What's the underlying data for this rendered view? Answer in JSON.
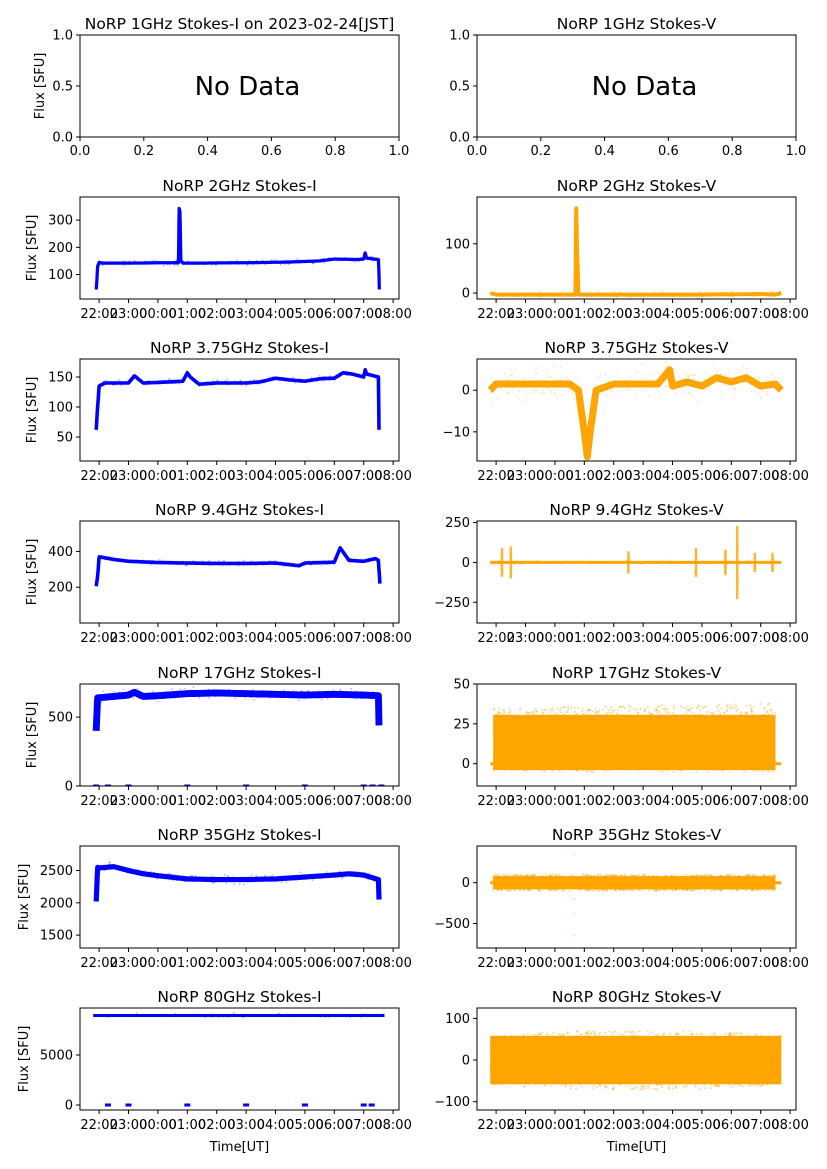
{
  "figure": {
    "x_tick_labels": [
      "22:00",
      "23:00",
      "00:00",
      "01:00",
      "02:00",
      "03:00",
      "04:00",
      "05:00",
      "06:00",
      "07:00",
      "08:00"
    ],
    "xlabel": "Time[UT]",
    "ylabel": "Flux [SFU]",
    "no_data_text": "No Data",
    "colors": {
      "stokes_i": "#0000ff",
      "stokes_v": "#ffa500"
    }
  },
  "chart_data": [
    {
      "id": "1ghz-i",
      "type": "scatter",
      "title": "NoRP 1GHz Stokes-I on 2023-02-24[JST]",
      "ylabel": "Flux [SFU]",
      "xlabel": "",
      "no_data": true,
      "xlim": [
        0,
        1
      ],
      "ylim": [
        0,
        1
      ],
      "x_ticks": [
        "0.0",
        "0.2",
        "0.4",
        "0.6",
        "0.8",
        "1.0"
      ],
      "y_ticks": [
        {
          "v": 0,
          "l": "0.0"
        },
        {
          "v": 0.5,
          "l": "0.5"
        },
        {
          "v": 1,
          "l": "1.0"
        }
      ]
    },
    {
      "id": "1ghz-v",
      "type": "scatter",
      "title": "NoRP 1GHz Stokes-V",
      "ylabel": "",
      "xlabel": "",
      "no_data": true,
      "xlim": [
        0,
        1
      ],
      "ylim": [
        0,
        1
      ],
      "x_ticks": [
        "0.0",
        "0.2",
        "0.4",
        "0.6",
        "0.8",
        "1.0"
      ],
      "y_ticks": [
        {
          "v": 0,
          "l": "0.0"
        },
        {
          "v": 0.5,
          "l": "0.5"
        },
        {
          "v": 1,
          "l": "1.0"
        }
      ]
    },
    {
      "id": "2ghz-i",
      "type": "scatter",
      "title": "NoRP 2GHz Stokes-I",
      "ylabel": "Flux [SFU]",
      "stokes": "I",
      "ylim": [
        10,
        385
      ],
      "y_ticks": [
        {
          "v": 100,
          "l": "100"
        },
        {
          "v": 200,
          "l": "200"
        },
        {
          "v": 300,
          "l": "300"
        }
      ],
      "series": [
        {
          "name": "2GHz I",
          "x_hours": [
            -2.1,
            -2.08,
            -2.05,
            -2.0,
            -1.9,
            -1.5,
            -1.0,
            0.0,
            0.7,
            0.72,
            0.75,
            0.78,
            0.85,
            1.5,
            2.5,
            3.5,
            4.5,
            5.5,
            6.0,
            6.8,
            7.0,
            7.05,
            7.1,
            7.5,
            7.52,
            7.53
          ],
          "y": [
            45,
            70,
            130,
            145,
            142,
            142,
            142,
            143,
            143,
            345,
            330,
            150,
            142,
            142,
            143,
            144,
            146,
            150,
            157,
            155,
            157,
            180,
            160,
            155,
            100,
            45
          ],
          "spread": 6
        }
      ]
    },
    {
      "id": "2ghz-v",
      "type": "scatter",
      "title": "NoRP 2GHz Stokes-V",
      "ylabel": "",
      "stokes": "V",
      "ylim": [
        -12,
        195
      ],
      "y_ticks": [
        {
          "v": 0,
          "l": "0"
        },
        {
          "v": 100,
          "l": "100"
        }
      ],
      "series": [
        {
          "name": "2GHz V",
          "x_hours": [
            -2.2,
            -2.0,
            -1.0,
            0.0,
            0.7,
            0.72,
            0.75,
            0.8,
            1.5,
            3.0,
            5.0,
            7.0,
            7.5,
            7.7
          ],
          "y": [
            0,
            -3,
            -3,
            -3,
            -3,
            190,
            100,
            -3,
            -3,
            -3,
            -3,
            -2,
            -3,
            0
          ],
          "spread": 4
        }
      ]
    },
    {
      "id": "3.75ghz-i",
      "type": "scatter",
      "title": "NoRP 3.75GHz Stokes-I",
      "ylabel": "Flux [SFU]",
      "stokes": "I",
      "ylim": [
        10,
        180
      ],
      "y_ticks": [
        {
          "v": 50,
          "l": "50"
        },
        {
          "v": 100,
          "l": "100"
        },
        {
          "v": 150,
          "l": "150"
        }
      ],
      "series": [
        {
          "name": "3.75GHz I",
          "x_hours": [
            -2.1,
            -2.05,
            -2.0,
            -1.8,
            -1.0,
            -0.8,
            -0.5,
            0.0,
            0.5,
            0.85,
            1.0,
            1.1,
            1.4,
            2.0,
            2.5,
            3.0,
            3.5,
            4.0,
            4.5,
            5.0,
            5.5,
            6.0,
            6.3,
            6.6,
            7.0,
            7.05,
            7.1,
            7.5,
            7.52
          ],
          "y": [
            62,
            100,
            135,
            140,
            140,
            152,
            140,
            141,
            142,
            143,
            157,
            150,
            138,
            140,
            140,
            140,
            142,
            148,
            145,
            143,
            147,
            148,
            157,
            155,
            150,
            162,
            155,
            150,
            62
          ],
          "spread": 3
        }
      ]
    },
    {
      "id": "3.75ghz-v",
      "type": "scatter",
      "title": "NoRP 3.75GHz Stokes-V",
      "ylabel": "",
      "stokes": "V",
      "ylim": [
        -17,
        7.5
      ],
      "y_ticks": [
        {
          "v": -10,
          "l": "−10"
        },
        {
          "v": 0,
          "l": "0"
        }
      ],
      "series": [
        {
          "name": "3.75GHz V",
          "x_hours": [
            -2.2,
            -2.0,
            -1.0,
            0.0,
            0.5,
            0.8,
            1.0,
            1.1,
            1.2,
            1.4,
            2.0,
            3.0,
            3.5,
            3.8,
            3.9,
            4.0,
            4.5,
            5.0,
            5.5,
            6.0,
            6.5,
            7.0,
            7.5,
            7.7
          ],
          "y": [
            0,
            1.5,
            1.5,
            1.5,
            1.5,
            0,
            -10,
            -16,
            -10,
            0,
            1.5,
            1.5,
            1.5,
            4,
            5,
            1,
            2,
            1,
            3,
            2,
            3,
            1,
            1.5,
            0
          ],
          "spread": 2.5
        }
      ]
    },
    {
      "id": "9.4ghz-i",
      "type": "scatter",
      "title": "NoRP 9.4GHz Stokes-I",
      "ylabel": "Flux [SFU]",
      "stokes": "I",
      "ylim": [
        0,
        570
      ],
      "y_ticks": [
        {
          "v": 200,
          "l": "200"
        },
        {
          "v": 400,
          "l": "400"
        }
      ],
      "series": [
        {
          "name": "9.4GHz I",
          "x_hours": [
            -2.1,
            -2.05,
            -2.0,
            -1.5,
            -1.0,
            0.0,
            1.0,
            2.0,
            3.0,
            4.0,
            4.8,
            5.0,
            6.0,
            6.2,
            6.5,
            7.0,
            7.4,
            7.5,
            7.55
          ],
          "y": [
            205,
            260,
            370,
            355,
            345,
            338,
            335,
            333,
            333,
            335,
            320,
            335,
            340,
            420,
            350,
            345,
            360,
            350,
            220
          ],
          "spread": 10
        }
      ]
    },
    {
      "id": "9.4ghz-v",
      "type": "scatter",
      "title": "NoRP 9.4GHz Stokes-V",
      "ylabel": "",
      "stokes": "V",
      "ylim": [
        -380,
        260
      ],
      "y_ticks": [
        {
          "v": -250,
          "l": "−250"
        },
        {
          "v": 0,
          "l": "0"
        },
        {
          "v": 250,
          "l": "250"
        }
      ],
      "series": [
        {
          "name": "9.4GHz V",
          "x_hours": [
            -2.2,
            7.7
          ],
          "y": [
            0,
            0
          ],
          "spread": 8,
          "bursts_x_hours": [
            -1.8,
            -1.5,
            2.5,
            4.8,
            5.8,
            6.2,
            6.8,
            7.4
          ],
          "bursts_amplitude": [
            90,
            100,
            70,
            90,
            80,
            230,
            60,
            60
          ]
        }
      ]
    },
    {
      "id": "17ghz-i",
      "type": "scatter",
      "title": "NoRP 17GHz Stokes-I",
      "ylabel": "Flux [SFU]",
      "stokes": "I",
      "ylim": [
        0,
        740
      ],
      "y_ticks": [
        {
          "v": 0,
          "l": "0"
        },
        {
          "v": 500,
          "l": "500"
        }
      ],
      "series": [
        {
          "name": "17GHz I",
          "x_hours": [
            -2.1,
            -2.05,
            -2.0,
            -1.5,
            -1.0,
            -0.8,
            -0.5,
            0.0,
            1.0,
            2.0,
            3.0,
            4.0,
            5.0,
            6.0,
            7.0,
            7.5,
            7.52
          ],
          "y": [
            400,
            640,
            640,
            650,
            660,
            680,
            650,
            655,
            670,
            675,
            670,
            665,
            660,
            665,
            660,
            655,
            440
          ],
          "spread": 25,
          "dropouts_x_hours": [
            -2.1,
            -1.7,
            -1.0,
            1.0,
            3.0,
            5.0,
            7.0,
            7.3,
            7.6
          ]
        }
      ]
    },
    {
      "id": "17ghz-v",
      "type": "scatter",
      "title": "NoRP 17GHz Stokes-V",
      "ylabel": "",
      "stokes": "V",
      "ylim": [
        -14,
        50
      ],
      "y_ticks": [
        {
          "v": 0,
          "l": "0"
        },
        {
          "v": 25,
          "l": "25"
        },
        {
          "v": 50,
          "l": "50"
        }
      ],
      "series": [
        {
          "name": "17GHz V",
          "x_hours": [
            -2.1,
            7.5
          ],
          "band_low": [
            -5,
            -5
          ],
          "band_high": [
            35,
            38
          ],
          "center": 15,
          "baseline_x_hours": [
            -2.2,
            7.7
          ],
          "baseline_y": 0
        }
      ]
    },
    {
      "id": "35ghz-i",
      "type": "scatter",
      "title": "NoRP 35GHz Stokes-I",
      "ylabel": "Flux [SFU]",
      "stokes": "I",
      "ylim": [
        1300,
        2880
      ],
      "y_ticks": [
        {
          "v": 1500,
          "l": "1500"
        },
        {
          "v": 2000,
          "l": "2000"
        },
        {
          "v": 2500,
          "l": "2500"
        }
      ],
      "series": [
        {
          "name": "35GHz I",
          "x_hours": [
            -2.1,
            -2.05,
            -2.0,
            -1.5,
            -1.0,
            -0.5,
            0.0,
            1.0,
            2.0,
            3.0,
            4.0,
            5.0,
            6.0,
            6.5,
            7.0,
            7.5,
            7.52
          ],
          "y": [
            2020,
            2550,
            2540,
            2560,
            2500,
            2450,
            2420,
            2370,
            2360,
            2360,
            2370,
            2400,
            2430,
            2450,
            2430,
            2360,
            2050
          ],
          "spread": 40
        }
      ]
    },
    {
      "id": "35ghz-v",
      "type": "scatter",
      "title": "NoRP 35GHz Stokes-V",
      "ylabel": "",
      "stokes": "V",
      "ylim": [
        -800,
        450
      ],
      "y_ticks": [
        {
          "v": -500,
          "l": "−500"
        },
        {
          "v": 0,
          "l": "0"
        }
      ],
      "series": [
        {
          "name": "35GHz V",
          "x_hours": [
            -2.1,
            7.5
          ],
          "band_low": [
            -100,
            -100
          ],
          "band_high": [
            100,
            100
          ],
          "center": 0,
          "baseline_x_hours": [
            -2.2,
            7.7
          ],
          "baseline_y": 0,
          "outliers_x_hours": [
            0.65,
            0.65,
            0.65,
            0.65
          ],
          "outliers_y": [
            350,
            -200,
            -380,
            -650
          ]
        }
      ]
    },
    {
      "id": "80ghz-i",
      "type": "scatter",
      "title": "NoRP 80GHz Stokes-I",
      "ylabel": "Flux [SFU]",
      "xlabel": "Time[UT]",
      "stokes": "I",
      "ylim": [
        -500,
        9700
      ],
      "y_ticks": [
        {
          "v": 0,
          "l": "0"
        },
        {
          "v": 5000,
          "l": "5000"
        }
      ],
      "series": [
        {
          "name": "80GHz I",
          "x_hours": [
            -2.2,
            7.7
          ],
          "y": [
            8950,
            8950
          ],
          "spread": 120,
          "dropouts_x_hours": [
            -1.7,
            -1.0,
            1.0,
            3.0,
            5.0,
            7.0,
            7.27
          ]
        }
      ]
    },
    {
      "id": "80ghz-v",
      "type": "scatter",
      "title": "NoRP 80GHz Stokes-V",
      "ylabel": "",
      "xlabel": "Time[UT]",
      "stokes": "V",
      "ylim": [
        -120,
        125
      ],
      "y_ticks": [
        {
          "v": -100,
          "l": "−100"
        },
        {
          "v": 0,
          "l": "0"
        },
        {
          "v": 100,
          "l": "100"
        }
      ],
      "series": [
        {
          "name": "80GHz V",
          "x_hours": [
            -2.2,
            7.7
          ],
          "band_low": [
            -60,
            -60
          ],
          "band_high": [
            60,
            60
          ],
          "center": 0,
          "band_bulge": 1.2
        }
      ]
    }
  ]
}
